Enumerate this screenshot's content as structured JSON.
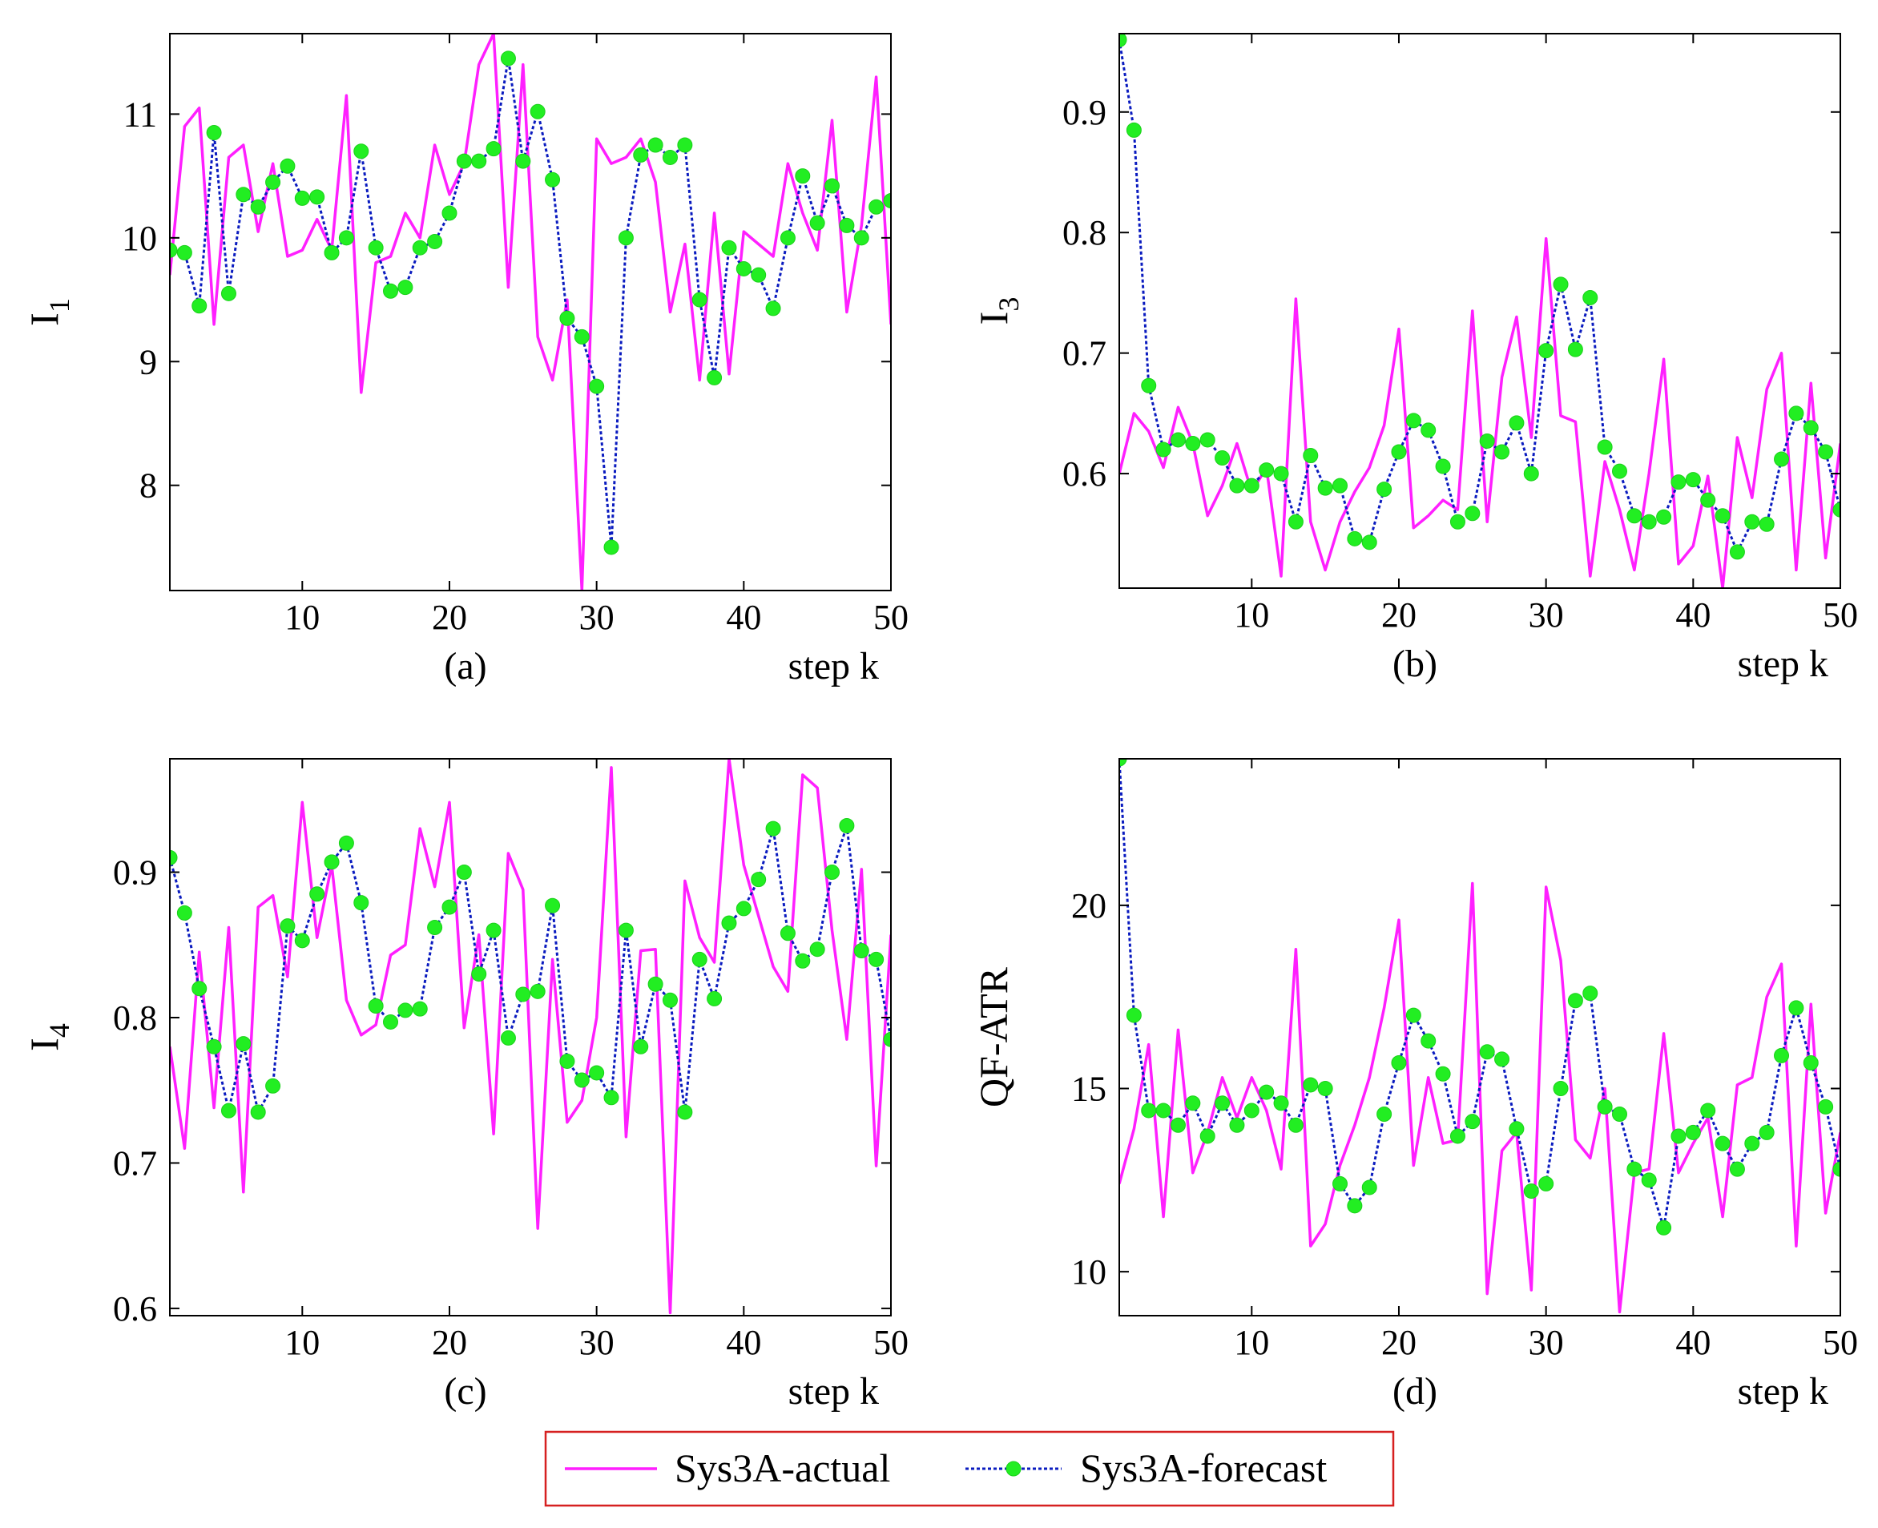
{
  "legend": {
    "actual_label": "Sys3A-actual",
    "forecast_label": "Sys3A-forecast",
    "border_color": "#d62020"
  },
  "colors": {
    "actual": "#ff1fff",
    "forecast_line": "#0a1bbf",
    "forecast_marker": "#22ee22"
  },
  "chart_data": [
    {
      "id": "a",
      "type": "line",
      "subtitle": "(a)",
      "xlabel": "step k",
      "ylabel": "I",
      "ylabel_sub": "1",
      "xlim": [
        1,
        50
      ],
      "ylim": [
        7.15,
        11.65
      ],
      "xticks": [
        10,
        20,
        30,
        40,
        50
      ],
      "yticks": [
        8,
        9,
        10,
        11
      ],
      "x": [
        1,
        2,
        3,
        4,
        5,
        6,
        7,
        8,
        9,
        10,
        11,
        12,
        13,
        14,
        15,
        16,
        17,
        18,
        19,
        20,
        21,
        22,
        23,
        24,
        25,
        26,
        27,
        28,
        29,
        30,
        31,
        32,
        33,
        34,
        35,
        36,
        37,
        38,
        39,
        40,
        41,
        42,
        43,
        44,
        45,
        46,
        47,
        48,
        49,
        50
      ],
      "series": [
        {
          "name": "Sys3A-actual",
          "values": [
            9.7,
            10.9,
            11.05,
            9.3,
            10.65,
            10.75,
            10.05,
            10.6,
            9.85,
            9.9,
            10.15,
            9.9,
            11.15,
            8.75,
            9.8,
            9.85,
            10.2,
            10.0,
            10.75,
            10.35,
            10.6,
            11.4,
            11.65,
            9.6,
            11.4,
            9.2,
            8.85,
            9.5,
            7.15,
            10.8,
            10.6,
            10.65,
            10.8,
            10.45,
            9.4,
            9.95,
            8.85,
            10.2,
            8.9,
            10.05,
            9.95,
            9.85,
            10.6,
            10.2,
            9.9,
            10.95,
            9.4,
            10.1,
            11.3,
            9.3
          ]
        },
        {
          "name": "Sys3A-forecast",
          "values": [
            9.9,
            9.88,
            9.45,
            10.85,
            9.55,
            10.35,
            10.25,
            10.45,
            10.58,
            10.32,
            10.33,
            9.88,
            10.0,
            10.7,
            9.92,
            9.57,
            9.6,
            9.92,
            9.97,
            10.2,
            10.62,
            10.62,
            10.72,
            11.45,
            10.62,
            11.02,
            10.47,
            9.35,
            9.2,
            8.8,
            7.5,
            10.0,
            10.67,
            10.75,
            10.65,
            10.75,
            9.5,
            8.87,
            9.92,
            9.75,
            9.7,
            9.43,
            10.0,
            10.5,
            10.12,
            10.42,
            10.1,
            10.0,
            10.25,
            10.3
          ]
        }
      ]
    },
    {
      "id": "b",
      "type": "line",
      "subtitle": "(b)",
      "xlabel": "step k",
      "ylabel": "I",
      "ylabel_sub": "3",
      "xlim": [
        1,
        50
      ],
      "ylim": [
        0.505,
        0.965
      ],
      "xticks": [
        10,
        20,
        30,
        40,
        50
      ],
      "yticks": [
        0.6,
        0.7,
        0.8,
        0.9
      ],
      "x": [
        1,
        2,
        3,
        4,
        5,
        6,
        7,
        8,
        9,
        10,
        11,
        12,
        13,
        14,
        15,
        16,
        17,
        18,
        19,
        20,
        21,
        22,
        23,
        24,
        25,
        26,
        27,
        28,
        29,
        30,
        31,
        32,
        33,
        34,
        35,
        36,
        37,
        38,
        39,
        40,
        41,
        42,
        43,
        44,
        45,
        46,
        47,
        48,
        49,
        50
      ],
      "series": [
        {
          "name": "Sys3A-actual",
          "values": [
            0.6,
            0.65,
            0.635,
            0.605,
            0.655,
            0.625,
            0.565,
            0.59,
            0.625,
            0.585,
            0.605,
            0.515,
            0.745,
            0.56,
            0.52,
            0.56,
            0.585,
            0.605,
            0.64,
            0.72,
            0.555,
            0.565,
            0.578,
            0.57,
            0.735,
            0.56,
            0.68,
            0.73,
            0.63,
            0.795,
            0.648,
            0.643,
            0.515,
            0.61,
            0.57,
            0.52,
            0.6,
            0.695,
            0.525,
            0.54,
            0.598,
            0.505,
            0.63,
            0.58,
            0.67,
            0.7,
            0.52,
            0.675,
            0.53,
            0.625
          ]
        },
        {
          "name": "Sys3A-forecast",
          "values": [
            0.96,
            0.885,
            0.673,
            0.62,
            0.628,
            0.625,
            0.628,
            0.613,
            0.59,
            0.59,
            0.603,
            0.6,
            0.56,
            0.615,
            0.588,
            0.59,
            0.546,
            0.543,
            0.587,
            0.618,
            0.644,
            0.636,
            0.606,
            0.56,
            0.567,
            0.627,
            0.618,
            0.642,
            0.6,
            0.702,
            0.757,
            0.703,
            0.746,
            0.622,
            0.602,
            0.565,
            0.56,
            0.564,
            0.593,
            0.595,
            0.578,
            0.565,
            0.535,
            0.56,
            0.558,
            0.612,
            0.65,
            0.638,
            0.618,
            0.57
          ]
        }
      ]
    },
    {
      "id": "c",
      "type": "line",
      "subtitle": "(c)",
      "xlabel": "step k",
      "ylabel": "I",
      "ylabel_sub": "4",
      "xlim": [
        1,
        50
      ],
      "ylim": [
        0.595,
        0.978
      ],
      "xticks": [
        10,
        20,
        30,
        40,
        50
      ],
      "yticks": [
        0.6,
        0.7,
        0.8,
        0.9
      ],
      "x": [
        1,
        2,
        3,
        4,
        5,
        6,
        7,
        8,
        9,
        10,
        11,
        12,
        13,
        14,
        15,
        16,
        17,
        18,
        19,
        20,
        21,
        22,
        23,
        24,
        25,
        26,
        27,
        28,
        29,
        30,
        31,
        32,
        33,
        34,
        35,
        36,
        37,
        38,
        39,
        40,
        41,
        42,
        43,
        44,
        45,
        46,
        47,
        48,
        49,
        50
      ],
      "series": [
        {
          "name": "Sys3A-actual",
          "values": [
            0.78,
            0.71,
            0.845,
            0.738,
            0.862,
            0.68,
            0.876,
            0.884,
            0.828,
            0.948,
            0.855,
            0.905,
            0.812,
            0.788,
            0.795,
            0.843,
            0.85,
            0.93,
            0.89,
            0.948,
            0.793,
            0.857,
            0.72,
            0.913,
            0.888,
            0.655,
            0.84,
            0.728,
            0.743,
            0.8,
            0.972,
            0.718,
            0.846,
            0.847,
            0.597,
            0.894,
            0.855,
            0.838,
            0.978,
            0.905,
            0.87,
            0.835,
            0.818,
            0.967,
            0.958,
            0.86,
            0.785,
            0.902,
            0.698,
            0.857
          ]
        },
        {
          "name": "Sys3A-forecast",
          "values": [
            0.91,
            0.872,
            0.82,
            0.78,
            0.736,
            0.782,
            0.735,
            0.753,
            0.863,
            0.853,
            0.885,
            0.907,
            0.92,
            0.879,
            0.808,
            0.797,
            0.805,
            0.806,
            0.862,
            0.876,
            0.9,
            0.83,
            0.86,
            0.786,
            0.816,
            0.818,
            0.877,
            0.77,
            0.757,
            0.762,
            0.745,
            0.86,
            0.78,
            0.823,
            0.812,
            0.735,
            0.84,
            0.813,
            0.865,
            0.875,
            0.895,
            0.93,
            0.858,
            0.839,
            0.847,
            0.9,
            0.932,
            0.846,
            0.84,
            0.785
          ]
        }
      ]
    },
    {
      "id": "d",
      "type": "line",
      "subtitle": "(d)",
      "xlabel": "step k",
      "ylabel": "QF-ATR",
      "ylabel_sub": "",
      "xlim": [
        1,
        50
      ],
      "ylim": [
        8.8,
        24.0
      ],
      "xticks": [
        10,
        20,
        30,
        40,
        50
      ],
      "yticks": [
        10,
        15,
        20
      ],
      "x": [
        1,
        2,
        3,
        4,
        5,
        6,
        7,
        8,
        9,
        10,
        11,
        12,
        13,
        14,
        15,
        16,
        17,
        18,
        19,
        20,
        21,
        22,
        23,
        24,
        25,
        26,
        27,
        28,
        29,
        30,
        31,
        32,
        33,
        34,
        35,
        36,
        37,
        38,
        39,
        40,
        41,
        42,
        43,
        44,
        45,
        46,
        47,
        48,
        49,
        50
      ],
      "series": [
        {
          "name": "Sys3A-actual",
          "values": [
            12.4,
            13.9,
            16.2,
            11.5,
            16.6,
            12.7,
            13.8,
            15.3,
            14.2,
            15.3,
            14.4,
            12.8,
            18.8,
            10.7,
            11.3,
            12.9,
            14.0,
            15.3,
            17.2,
            19.6,
            12.9,
            15.3,
            13.5,
            13.6,
            20.6,
            9.4,
            13.3,
            13.8,
            9.5,
            20.5,
            18.5,
            13.6,
            13.1,
            15.0,
            8.9,
            12.7,
            12.8,
            16.5,
            12.7,
            13.5,
            14.2,
            11.5,
            15.1,
            15.3,
            17.5,
            18.4,
            10.7,
            17.3,
            11.6,
            13.8
          ]
        },
        {
          "name": "Sys3A-forecast",
          "values": [
            24.0,
            17.0,
            14.4,
            14.4,
            14.0,
            14.6,
            13.7,
            14.6,
            14.0,
            14.4,
            14.9,
            14.6,
            14.0,
            15.1,
            15.0,
            12.4,
            11.8,
            12.3,
            14.3,
            15.7,
            17.0,
            16.3,
            15.4,
            13.7,
            14.1,
            16.0,
            15.8,
            13.9,
            12.2,
            12.4,
            15.0,
            17.4,
            17.6,
            14.5,
            14.3,
            12.8,
            12.5,
            11.2,
            13.7,
            13.8,
            14.4,
            13.5,
            12.8,
            13.5,
            13.8,
            15.9,
            17.2,
            15.7,
            14.5,
            12.8
          ]
        }
      ]
    }
  ]
}
